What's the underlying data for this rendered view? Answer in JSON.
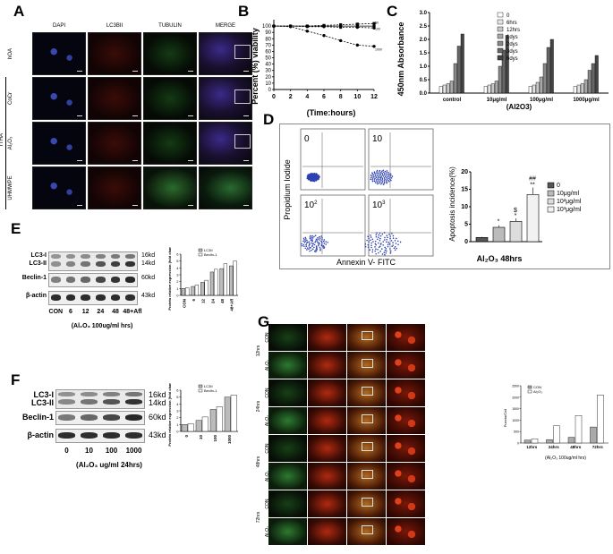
{
  "panelA": {
    "label": "A",
    "columns": [
      "DAPI",
      "LC3BII",
      "TUBULIN",
      "MERGE"
    ],
    "rows": [
      "hOA",
      "CoCr",
      "Al₂O₃",
      "UHMWPE"
    ],
    "group_label": "rTHA"
  },
  "panelB": {
    "label": "B",
    "ylabel": "Percent (%) viability",
    "xlabel": "(Time:hours)",
    "legend_lines": [
      "0",
      "10",
      "100",
      "1000"
    ]
  },
  "panelC": {
    "label": "C",
    "ylabel": "450nm Absorbance",
    "xlabel": "(Al2O3)",
    "legend": [
      "0",
      "6hrs",
      "12hrs",
      "1dys",
      "2dys",
      "3dys",
      "6dys"
    ]
  },
  "panelD": {
    "label": "D",
    "yaxis": "Propidium Iodide",
    "xaxis": "Annexin V- FITC",
    "quadrant_labels": [
      "0",
      "10",
      "10",
      "10"
    ],
    "quadrant_sups": [
      "",
      "",
      "2",
      "3"
    ],
    "bar_title": "Apoptosis incidence(%)",
    "bar_xlabel": "Al₂O₃ 48hrs",
    "legend": [
      "0",
      "10μg/ml",
      "10²μg/ml",
      "10³μg/ml"
    ],
    "sig": [
      "*",
      "$",
      "*",
      "##",
      "**"
    ]
  },
  "panelE": {
    "label": "E",
    "rows": [
      "LC3-I",
      "LC3-II",
      "Beclin-1",
      "β-actin"
    ],
    "sizes": [
      "16kd",
      "14kd",
      "60kd",
      "43kd"
    ],
    "lanes": [
      "CON",
      "6",
      "12",
      "24",
      "48",
      "48+Afl"
    ],
    "caption": "(Al₂O₃ 100ug/ml hrs)",
    "chart_ylabel": "Protein relative expression (fold change)",
    "chart_legend": [
      "LC3II",
      "Beclin-1"
    ]
  },
  "panelF": {
    "label": "F",
    "rows": [
      "LC3-I",
      "LC3-II",
      "Beclin-1",
      "β-actin"
    ],
    "sizes": [
      "16kd",
      "14kd",
      "60kd",
      "43kd"
    ],
    "lanes": [
      "0",
      "10",
      "100",
      "1000"
    ],
    "caption": "(Al₂O₃ ug/ml  24hrs)",
    "chart_ylabel": "Protein relative expression (fold change)",
    "chart_legend": [
      "LC3II",
      "Beclin-1"
    ]
  },
  "panelG": {
    "label": "G",
    "times": [
      "12hrs",
      "24hrs",
      "48hrs",
      "72hrs"
    ],
    "conditions": [
      "CON",
      "Al₂O₃"
    ],
    "chart_legend": [
      "CON",
      "Al₂O₃"
    ],
    "chart_xlabel": "(Al₂O₃ 100ug/ml hrs)",
    "chart_ylabel": "Puncta/Cell"
  },
  "colors": {
    "dapi": "#2a3f9a",
    "lc3": "#7a1a12",
    "tubulin": "#1f5a20",
    "fluor_red": "#c4321a",
    "fluor_green": "#2f8a3a"
  },
  "chart_data": [
    {
      "type": "line",
      "panel": "B",
      "x": [
        0,
        2,
        4,
        6,
        8,
        10,
        12
      ],
      "xlim": [
        0,
        12
      ],
      "ylim": [
        0,
        110
      ],
      "yticks": [
        0,
        10,
        20,
        30,
        40,
        50,
        60,
        70,
        80,
        90,
        100
      ],
      "xticks": [
        0,
        2,
        4,
        6,
        8,
        10,
        12
      ],
      "series": [
        {
          "name": "0",
          "values": [
            100,
            100,
            100,
            100,
            100,
            100,
            100
          ]
        },
        {
          "name": "10",
          "values": [
            100,
            100,
            100,
            101,
            102,
            103,
            104
          ]
        },
        {
          "name": "100",
          "values": [
            100,
            100,
            99,
            99,
            98,
            98,
            97
          ]
        },
        {
          "name": "1000",
          "values": [
            100,
            99,
            92,
            85,
            77,
            70,
            68
          ]
        }
      ]
    },
    {
      "type": "bar",
      "panel": "C",
      "categories": [
        "control",
        "10μg/ml",
        "100μg/ml",
        "1000μg/ml"
      ],
      "ylim": [
        0,
        3
      ],
      "yticks": [
        0.0,
        0.5,
        1.0,
        1.5,
        2.0,
        2.5,
        3.0
      ],
      "series": [
        {
          "name": "0",
          "values": [
            0.25,
            0.25,
            0.25,
            0.25
          ]
        },
        {
          "name": "6hrs",
          "values": [
            0.3,
            0.3,
            0.3,
            0.3
          ]
        },
        {
          "name": "12hrs",
          "values": [
            0.35,
            0.35,
            0.4,
            0.35
          ]
        },
        {
          "name": "1dys",
          "values": [
            0.45,
            0.45,
            0.6,
            0.5
          ]
        },
        {
          "name": "2dys",
          "values": [
            1.1,
            1.0,
            1.1,
            0.85
          ]
        },
        {
          "name": "3dys",
          "values": [
            1.75,
            1.6,
            1.7,
            1.1
          ]
        },
        {
          "name": "6dys",
          "values": [
            2.2,
            2.15,
            2.0,
            1.4
          ]
        }
      ]
    },
    {
      "type": "bar",
      "panel": "D",
      "categories": [
        "0",
        "10μg/ml",
        "10²μg/ml",
        "10³μg/ml"
      ],
      "values": [
        1.2,
        4.1,
        5.8,
        13.5
      ],
      "ylim": [
        0,
        20
      ],
      "yticks": [
        0,
        5,
        10,
        15,
        20
      ]
    },
    {
      "type": "bar",
      "panel": "E",
      "categories": [
        "CON",
        "6",
        "12",
        "24",
        "48",
        "48+Afl"
      ],
      "ylim": [
        0,
        6
      ],
      "yticks": [
        0,
        1,
        2,
        3,
        4,
        5,
        6
      ],
      "series": [
        {
          "name": "LC3II",
          "values": [
            1.0,
            1.3,
            1.9,
            3.4,
            3.9,
            4.3
          ]
        },
        {
          "name": "Beclin-1",
          "values": [
            1.1,
            1.5,
            2.2,
            3.8,
            4.6,
            5.0
          ]
        }
      ]
    },
    {
      "type": "bar",
      "panel": "F",
      "categories": [
        "0",
        "10",
        "100",
        "1000"
      ],
      "ylim": [
        0,
        6
      ],
      "yticks": [
        0,
        1,
        2,
        3,
        4,
        5,
        6
      ],
      "series": [
        {
          "name": "LC3II",
          "values": [
            1.0,
            1.6,
            3.2,
            5.0
          ]
        },
        {
          "name": "Beclin-1",
          "values": [
            1.1,
            2.1,
            3.6,
            5.3
          ]
        }
      ]
    },
    {
      "type": "bar",
      "panel": "G",
      "categories": [
        "12hrs",
        "24hrs",
        "48hrs",
        "72hrs"
      ],
      "ylim": [
        0,
        2500
      ],
      "yticks": [
        0,
        500,
        1000,
        1500,
        2000,
        2500
      ],
      "series": [
        {
          "name": "CON",
          "values": [
            130,
            150,
            250,
            700
          ]
        },
        {
          "name": "Al₂O₃",
          "values": [
            180,
            750,
            1200,
            2100
          ]
        }
      ]
    }
  ]
}
